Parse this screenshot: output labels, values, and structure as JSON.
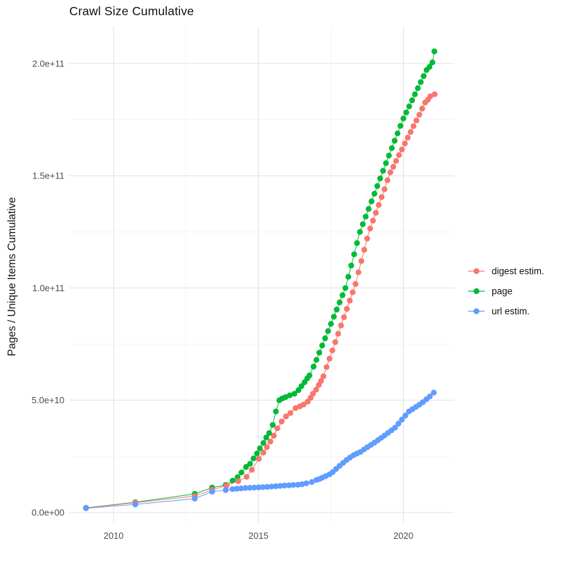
{
  "page": {
    "title": "Crawl Size Cumulative"
  },
  "chart_data": {
    "type": "scatter",
    "title": "Crawl Size Cumulative",
    "xlabel": "",
    "ylabel": "Pages / Unique Items Cumulative",
    "grid": true,
    "legend_position": "right",
    "xlim": [
      2008.47,
      2021.76
    ],
    "ylim": [
      -4900000000.0,
      216500000000.0
    ],
    "x_ticks": [
      2010,
      2015,
      2020
    ],
    "x_tick_labels": [
      "2010",
      "2015",
      "2020"
    ],
    "x_minor_ticks": [
      2012.5,
      2017.5
    ],
    "y_ticks": [
      0,
      50000000000.0,
      100000000000.0,
      150000000000.0,
      200000000000.0
    ],
    "y_tick_labels": [
      "0.0e+00",
      "5.0e+10",
      "1.0e+11",
      "1.5e+11",
      "2.0e+11"
    ],
    "y_minor_ticks": [
      25000000000.0,
      75000000000.0,
      125000000000.0,
      175000000000.0
    ],
    "colors": {
      "digest": "#F8766D",
      "page": "#00BA38",
      "url": "#619CFF"
    },
    "grid_major_color": "#E6E6E6",
    "grid_minor_color": "#F3F3F3",
    "series": [
      {
        "name": "digest estim.",
        "color": "#F8766D",
        "points": [
          [
            2009.05,
            2000000000.0
          ],
          [
            2010.75,
            4400000000.0
          ],
          [
            2012.8,
            7300000000.0
          ],
          [
            2013.4,
            10100000000.0
          ],
          [
            2013.9,
            12000000000.0
          ],
          [
            2014.3,
            14000000000.0
          ],
          [
            2014.59,
            15900000000.0
          ],
          [
            2014.77,
            19000000000.0
          ],
          [
            2015.01,
            23900000000.0
          ],
          [
            2015.17,
            26700000000.0
          ],
          [
            2015.29,
            29100000000.0
          ],
          [
            2015.41,
            31600000000.0
          ],
          [
            2015.53,
            34200000000.0
          ],
          [
            2015.65,
            37500000000.0
          ],
          [
            2015.8,
            40500000000.0
          ],
          [
            2015.95,
            42800000000.0
          ],
          [
            2016.1,
            44300000000.0
          ],
          [
            2016.28,
            46500000000.0
          ],
          [
            2016.43,
            47300000000.0
          ],
          [
            2016.56,
            48100000000.0
          ],
          [
            2016.7,
            49400000000.0
          ],
          [
            2016.8,
            51100000000.0
          ],
          [
            2016.88,
            52900000000.0
          ],
          [
            2016.99,
            54700000000.0
          ],
          [
            2017.08,
            56800000000.0
          ],
          [
            2017.16,
            58600000000.0
          ],
          [
            2017.24,
            60700000000.0
          ],
          [
            2017.35,
            64800000000.0
          ],
          [
            2017.45,
            68500000000.0
          ],
          [
            2017.55,
            72200000000.0
          ],
          [
            2017.65,
            75900000000.0
          ],
          [
            2017.75,
            79600000000.0
          ],
          [
            2017.85,
            83300000000.0
          ],
          [
            2017.95,
            87000000000.0
          ],
          [
            2018.05,
            90700000000.0
          ],
          [
            2018.15,
            94400000000.0
          ],
          [
            2018.25,
            98100000000.0
          ],
          [
            2018.35,
            101800000000.0
          ],
          [
            2018.45,
            107000000000.0
          ],
          [
            2018.55,
            112000000000.0
          ],
          [
            2018.65,
            117000000000.0
          ],
          [
            2018.75,
            122000000000.0
          ],
          [
            2018.85,
            126500000000.0
          ],
          [
            2018.95,
            130000000000.0
          ],
          [
            2019.05,
            133500000000.0
          ],
          [
            2019.15,
            137000000000.0
          ],
          [
            2019.25,
            140500000000.0
          ],
          [
            2019.35,
            144000000000.0
          ],
          [
            2019.45,
            148000000000.0
          ],
          [
            2019.55,
            151500000000.0
          ],
          [
            2019.65,
            154000000000.0
          ],
          [
            2019.75,
            156600000000.0
          ],
          [
            2019.85,
            159200000000.0
          ],
          [
            2019.95,
            161700000000.0
          ],
          [
            2020.05,
            164400000000.0
          ],
          [
            2020.15,
            167000000000.0
          ],
          [
            2020.25,
            169500000000.0
          ],
          [
            2020.35,
            172100000000.0
          ],
          [
            2020.45,
            174600000000.0
          ],
          [
            2020.55,
            177200000000.0
          ],
          [
            2020.65,
            179900000000.0
          ],
          [
            2020.75,
            182600000000.0
          ],
          [
            2020.85,
            183900000000.0
          ],
          [
            2020.93,
            185400000000.0
          ],
          [
            2021.08,
            186300000000.0
          ]
        ]
      },
      {
        "name": "page",
        "color": "#00BA38",
        "points": [
          [
            2009.05,
            2100000000.0
          ],
          [
            2010.75,
            4600000000.0
          ],
          [
            2012.8,
            8300000000.0
          ],
          [
            2013.4,
            11100000000.0
          ],
          [
            2013.87,
            12300000000.0
          ],
          [
            2014.11,
            14200000000.0
          ],
          [
            2014.28,
            15700000000.0
          ],
          [
            2014.41,
            17800000000.0
          ],
          [
            2014.57,
            20300000000.0
          ],
          [
            2014.71,
            21700000000.0
          ],
          [
            2014.83,
            24100000000.0
          ],
          [
            2014.95,
            26300000000.0
          ],
          [
            2015.05,
            28600000000.0
          ],
          [
            2015.17,
            31000000000.0
          ],
          [
            2015.27,
            33400000000.0
          ],
          [
            2015.37,
            35400000000.0
          ],
          [
            2015.49,
            39000000000.0
          ],
          [
            2015.6,
            45000000000.0
          ],
          [
            2015.72,
            50000000000.0
          ],
          [
            2015.82,
            50800000000.0
          ],
          [
            2015.93,
            51400000000.0
          ],
          [
            2016.08,
            52200000000.0
          ],
          [
            2016.24,
            52900000000.0
          ],
          [
            2016.38,
            54500000000.0
          ],
          [
            2016.48,
            56300000000.0
          ],
          [
            2016.59,
            58000000000.0
          ],
          [
            2016.68,
            59700000000.0
          ],
          [
            2016.76,
            61100000000.0
          ],
          [
            2016.9,
            65000000000.0
          ],
          [
            2017.0,
            68000000000.0
          ],
          [
            2017.1,
            71200000000.0
          ],
          [
            2017.2,
            74400000000.0
          ],
          [
            2017.3,
            77600000000.0
          ],
          [
            2017.4,
            80800000000.0
          ],
          [
            2017.5,
            84000000000.0
          ],
          [
            2017.6,
            87200000000.0
          ],
          [
            2017.7,
            90400000000.0
          ],
          [
            2017.8,
            93600000000.0
          ],
          [
            2017.9,
            96800000000.0
          ],
          [
            2018.0,
            100000000000.0
          ],
          [
            2018.1,
            105000000000.0
          ],
          [
            2018.2,
            110000000000.0
          ],
          [
            2018.3,
            115000000000.0
          ],
          [
            2018.4,
            120000000000.0
          ],
          [
            2018.5,
            125000000000.0
          ],
          [
            2018.6,
            128400000000.0
          ],
          [
            2018.7,
            131800000000.0
          ],
          [
            2018.8,
            135200000000.0
          ],
          [
            2018.9,
            138600000000.0
          ],
          [
            2019.0,
            142000000000.0
          ],
          [
            2019.1,
            145400000000.0
          ],
          [
            2019.2,
            148800000000.0
          ],
          [
            2019.3,
            152200000000.0
          ],
          [
            2019.4,
            155600000000.0
          ],
          [
            2019.5,
            159000000000.0
          ],
          [
            2019.6,
            162300000000.0
          ],
          [
            2019.7,
            165600000000.0
          ],
          [
            2019.8,
            168900000000.0
          ],
          [
            2019.9,
            172200000000.0
          ],
          [
            2020.0,
            175500000000.0
          ],
          [
            2020.1,
            178200000000.0
          ],
          [
            2020.2,
            180900000000.0
          ],
          [
            2020.3,
            183600000000.0
          ],
          [
            2020.4,
            186300000000.0
          ],
          [
            2020.5,
            189000000000.0
          ],
          [
            2020.6,
            191700000000.0
          ],
          [
            2020.7,
            194400000000.0
          ],
          [
            2020.8,
            197100000000.0
          ],
          [
            2020.9,
            198500000000.0
          ],
          [
            2021.0,
            200500000000.0
          ],
          [
            2021.07,
            205400000000.0
          ]
        ]
      },
      {
        "name": "url estim.",
        "color": "#619CFF",
        "points": [
          [
            2009.05,
            1900000000.0
          ],
          [
            2010.75,
            3600000000.0
          ],
          [
            2012.8,
            6200000000.0
          ],
          [
            2013.4,
            9300000000.0
          ],
          [
            2013.87,
            10000000000.0
          ],
          [
            2014.1,
            10400000000.0
          ],
          [
            2014.25,
            10600000000.0
          ],
          [
            2014.4,
            10750000000.0
          ],
          [
            2014.55,
            10900000000.0
          ],
          [
            2014.7,
            11000000000.0
          ],
          [
            2014.85,
            11100000000.0
          ],
          [
            2015.0,
            11200000000.0
          ],
          [
            2015.15,
            11300000000.0
          ],
          [
            2015.3,
            11400000000.0
          ],
          [
            2015.45,
            11550000000.0
          ],
          [
            2015.6,
            11700000000.0
          ],
          [
            2015.75,
            11850000000.0
          ],
          [
            2015.9,
            12000000000.0
          ],
          [
            2016.05,
            12100000000.0
          ],
          [
            2016.2,
            12250000000.0
          ],
          [
            2016.36,
            12350000000.0
          ],
          [
            2016.5,
            12600000000.0
          ],
          [
            2016.65,
            13000000000.0
          ],
          [
            2016.84,
            13600000000.0
          ],
          [
            2017.0,
            14500000000.0
          ],
          [
            2017.1,
            14900000000.0
          ],
          [
            2017.2,
            15500000000.0
          ],
          [
            2017.32,
            16200000000.0
          ],
          [
            2017.45,
            17000000000.0
          ],
          [
            2017.56,
            18000000000.0
          ],
          [
            2017.68,
            19400000000.0
          ],
          [
            2017.8,
            20800000000.0
          ],
          [
            2017.92,
            22100000000.0
          ],
          [
            2018.04,
            23400000000.0
          ],
          [
            2018.16,
            24500000000.0
          ],
          [
            2018.28,
            25500000000.0
          ],
          [
            2018.4,
            26300000000.0
          ],
          [
            2018.52,
            27000000000.0
          ],
          [
            2018.64,
            28100000000.0
          ],
          [
            2018.76,
            29100000000.0
          ],
          [
            2018.88,
            30100000000.0
          ],
          [
            2019.0,
            31100000000.0
          ],
          [
            2019.12,
            32200000000.0
          ],
          [
            2019.23,
            33200000000.0
          ],
          [
            2019.35,
            34300000000.0
          ],
          [
            2019.47,
            35500000000.0
          ],
          [
            2019.59,
            36600000000.0
          ],
          [
            2019.71,
            37800000000.0
          ],
          [
            2019.83,
            39600000000.0
          ],
          [
            2019.95,
            41400000000.0
          ],
          [
            2020.07,
            43200000000.0
          ],
          [
            2020.19,
            45000000000.0
          ],
          [
            2020.31,
            46000000000.0
          ],
          [
            2020.43,
            47000000000.0
          ],
          [
            2020.55,
            48000000000.0
          ],
          [
            2020.67,
            49100000000.0
          ],
          [
            2020.79,
            50400000000.0
          ],
          [
            2020.91,
            51700000000.0
          ],
          [
            2021.05,
            53400000000.0
          ]
        ]
      }
    ]
  }
}
